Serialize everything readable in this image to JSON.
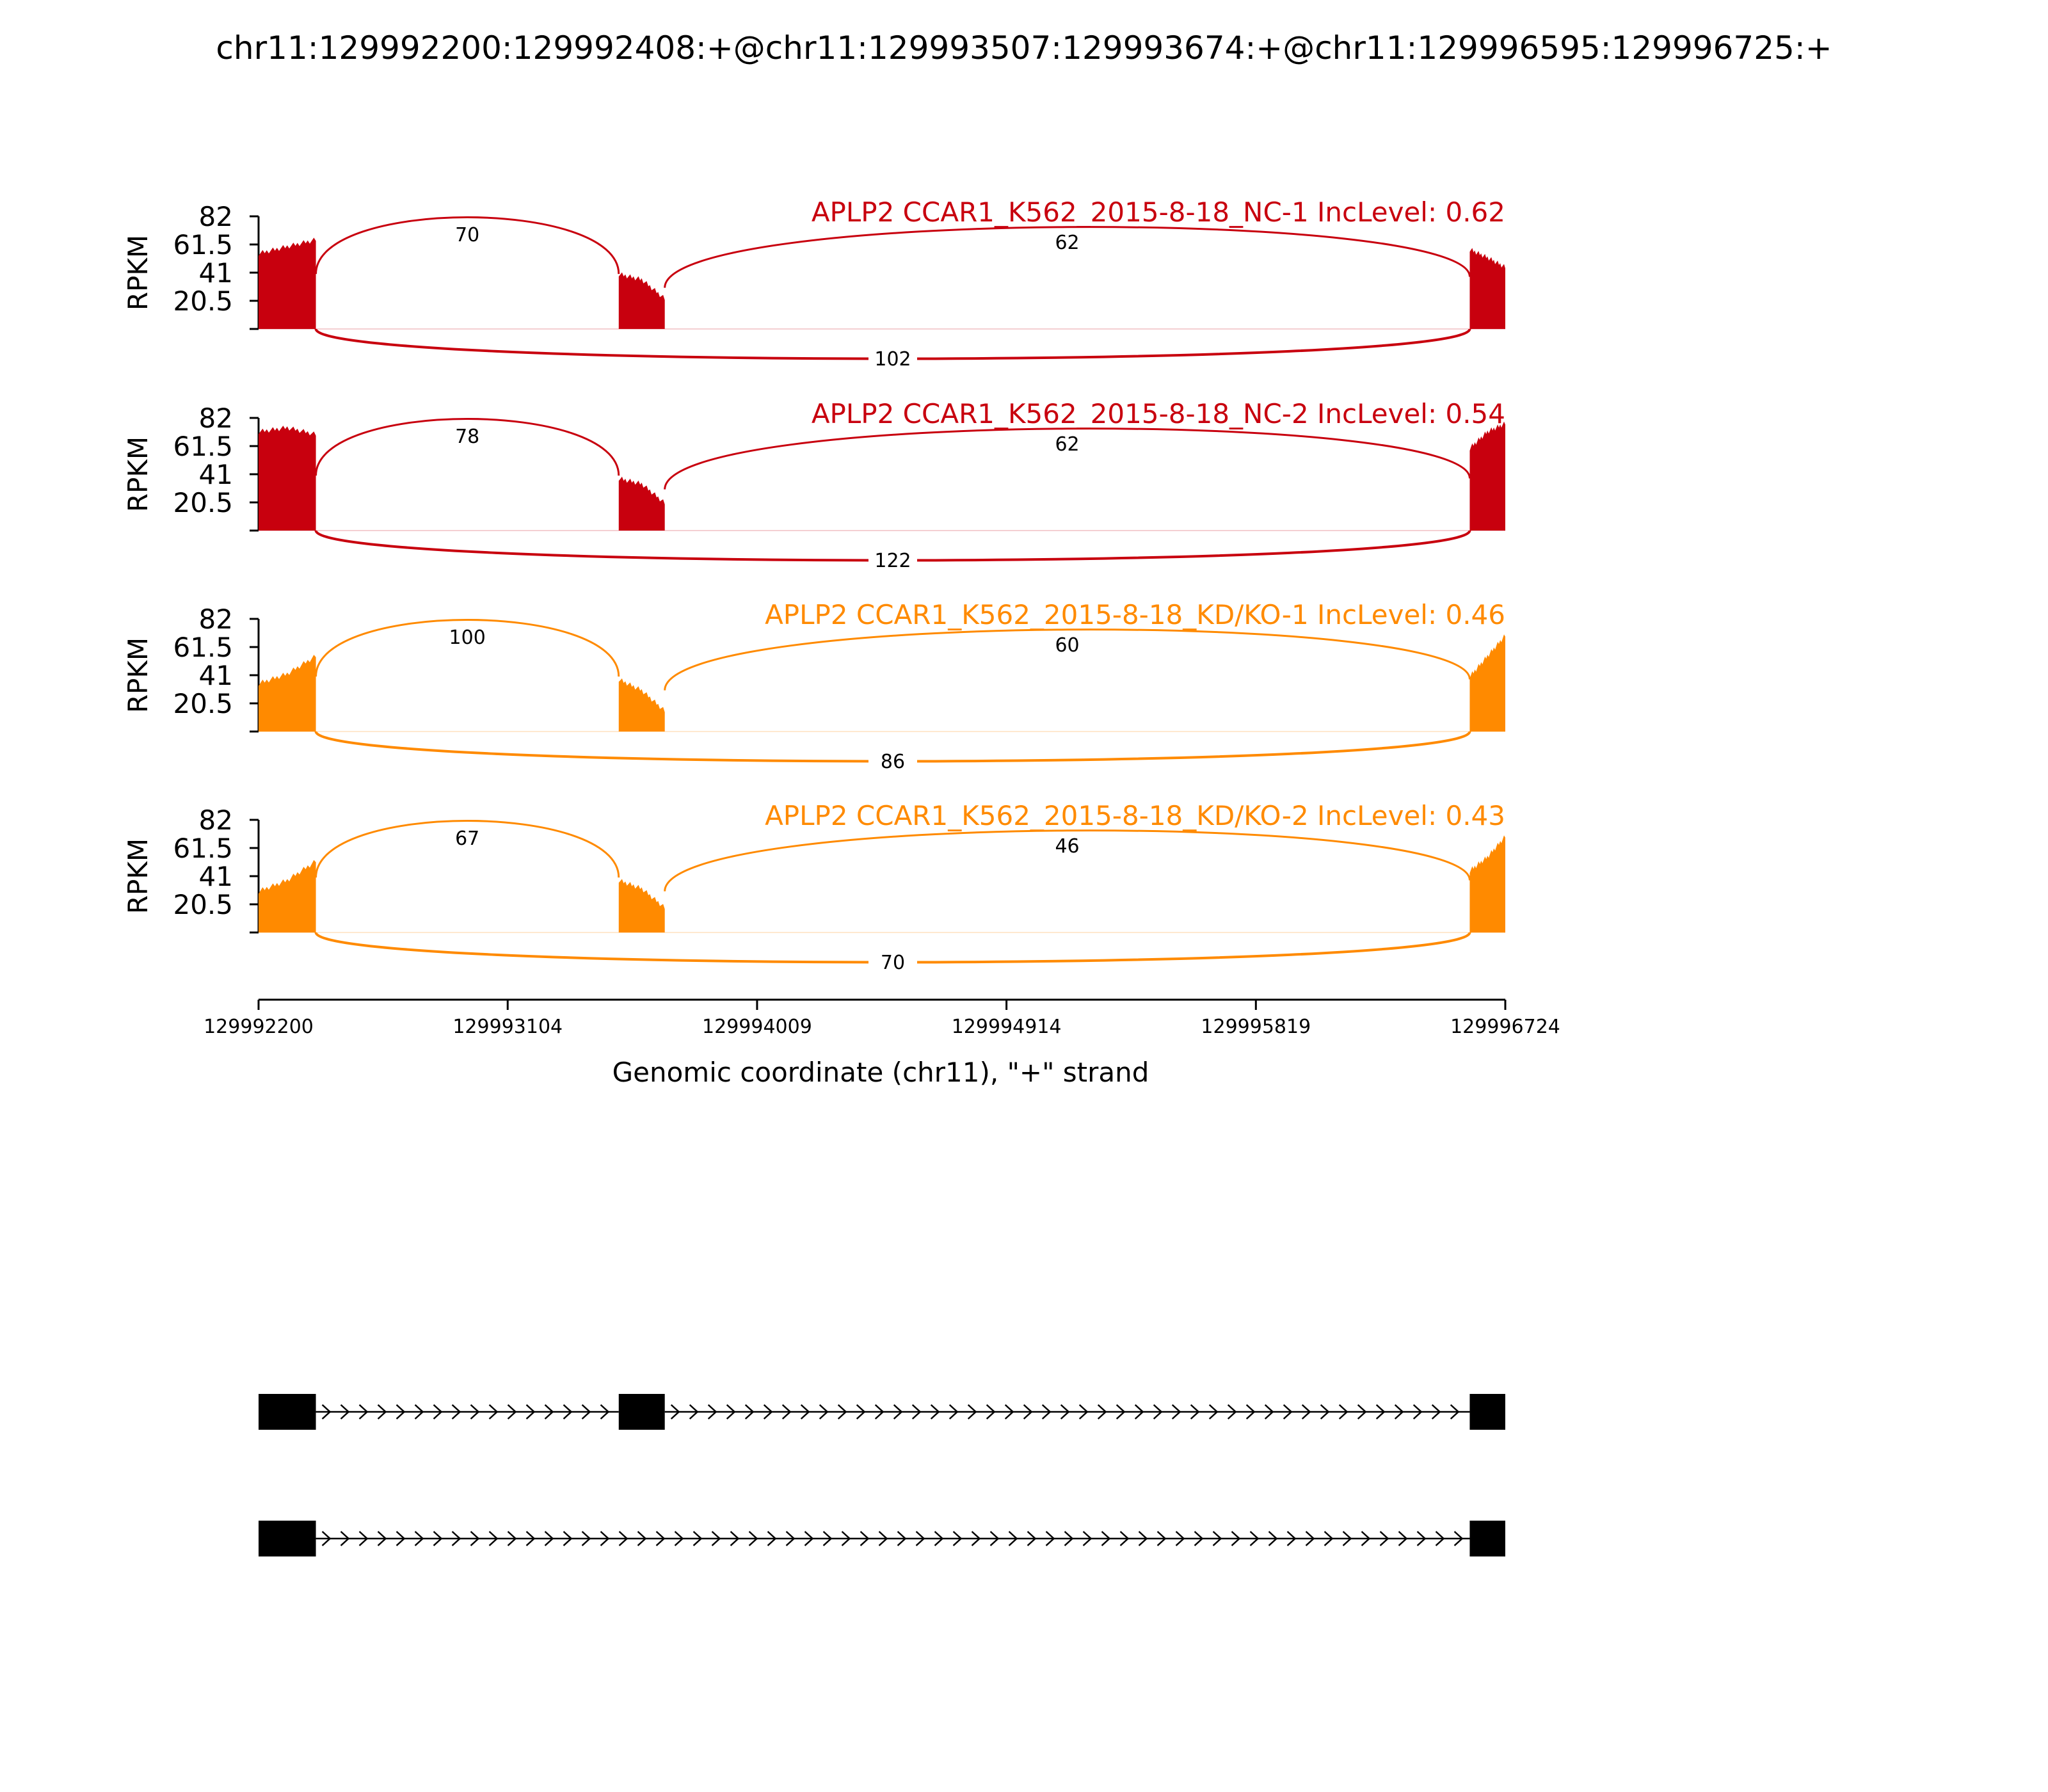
{
  "chart_data": {
    "type": "area",
    "title": "chr11:129992200:129992408:+@chr11:129993507:129993674:+@chr11:129996595:129996725:+",
    "xlabel": "Genomic coordinate (chr11), \"+\" strand",
    "ylabel": "RPKM",
    "xlim": [
      129992200,
      129996724
    ],
    "x_ticks": [
      "129992200",
      "129993104",
      "129994009",
      "129994914",
      "129995819",
      "129996724"
    ],
    "ylim": [
      0,
      82
    ],
    "y_ticks": [
      "82",
      "61.5",
      "41",
      "20.5"
    ],
    "exons": [
      {
        "start": 129992200,
        "end": 129992408
      },
      {
        "start": 129993507,
        "end": 129993674
      },
      {
        "start": 129996595,
        "end": 129996724
      }
    ],
    "colors": {
      "NC": "#c8000e",
      "KD": "#ff8a00",
      "axis": "#000000"
    },
    "tracks": [
      {
        "name": "APLP2 CCAR1_K562_2015-8-18_NC-1 IncLevel: 0.62",
        "color": "#c8000e",
        "exon_coverage": [
          [
            55,
            60,
            65
          ],
          [
            40,
            36,
            22
          ],
          [
            58,
            52,
            45
          ]
        ],
        "junctions": [
          {
            "from": 129992408,
            "to": 129993507,
            "count": "70"
          },
          {
            "from": 129993674,
            "to": 129996595,
            "count": "62"
          },
          {
            "from": 129992408,
            "to": 129996595,
            "count": "102"
          }
        ]
      },
      {
        "name": "APLP2 CCAR1_K562_2015-8-18_NC-2 IncLevel: 0.54",
        "color": "#c8000e",
        "exon_coverage": [
          [
            72,
            75,
            70
          ],
          [
            38,
            34,
            20
          ],
          [
            60,
            72,
            78
          ]
        ],
        "junctions": [
          {
            "from": 129992408,
            "to": 129993507,
            "count": "78"
          },
          {
            "from": 129993674,
            "to": 129996595,
            "count": "62"
          },
          {
            "from": 129992408,
            "to": 129996595,
            "count": "122"
          }
        ]
      },
      {
        "name": "APLP2 CCAR1_K562_2015-8-18_KD/KO-1 IncLevel: 0.46",
        "color": "#ff8a00",
        "exon_coverage": [
          [
            35,
            42,
            55
          ],
          [
            38,
            30,
            15
          ],
          [
            40,
            55,
            70
          ]
        ],
        "junctions": [
          {
            "from": 129992408,
            "to": 129993507,
            "count": "100"
          },
          {
            "from": 129993674,
            "to": 129996595,
            "count": "60"
          },
          {
            "from": 129992408,
            "to": 129996595,
            "count": "86"
          }
        ]
      },
      {
        "name": "APLP2 CCAR1_K562_2015-8-18_KD/KO-2 IncLevel: 0.43",
        "color": "#ff8a00",
        "exon_coverage": [
          [
            30,
            38,
            52
          ],
          [
            38,
            32,
            18
          ],
          [
            45,
            55,
            70
          ]
        ],
        "junctions": [
          {
            "from": 129992408,
            "to": 129993507,
            "count": "67"
          },
          {
            "from": 129993674,
            "to": 129996595,
            "count": "46"
          },
          {
            "from": 129992408,
            "to": 129996595,
            "count": "70"
          }
        ]
      }
    ],
    "isoforms": [
      {
        "exons": [
          0,
          1,
          2
        ]
      },
      {
        "exons": [
          0,
          2
        ]
      }
    ]
  }
}
